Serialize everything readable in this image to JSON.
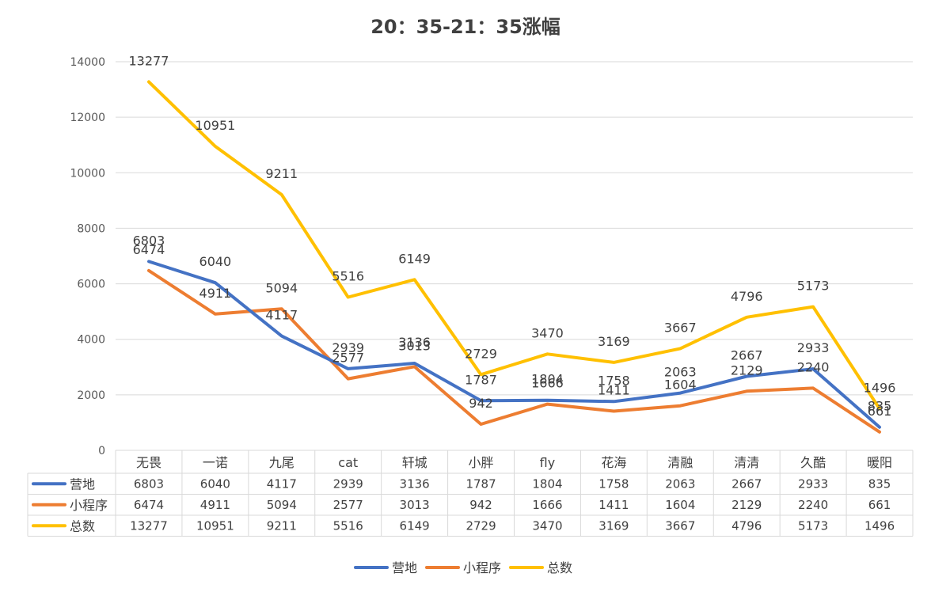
{
  "chart_data": {
    "type": "line",
    "title": "20：35-21：35涨幅",
    "categories": [
      "无畏",
      "一诺",
      "九尾",
      "cat",
      "轩城",
      "小胖",
      "fly",
      "花海",
      "清融",
      "清清",
      "久酷",
      "暖阳"
    ],
    "ylim": [
      0,
      14000
    ],
    "yticks": [
      "0",
      "2000",
      "4000",
      "6000",
      "8000",
      "10000",
      "12000",
      "14000"
    ],
    "grid": true,
    "legend_position": "bottom",
    "data_table": true,
    "series": [
      {
        "name": "营地",
        "color": "#4472c4",
        "values": [
          6803,
          6040,
          4117,
          2939,
          3136,
          1787,
          1804,
          1758,
          2063,
          2667,
          2933,
          835
        ]
      },
      {
        "name": "小程序",
        "color": "#ed7d31",
        "values": [
          6474,
          4911,
          5094,
          2577,
          3013,
          942,
          1666,
          1411,
          1604,
          2129,
          2240,
          661
        ]
      },
      {
        "name": "总数",
        "color": "#ffc000",
        "values": [
          13277,
          10951,
          9211,
          5516,
          6149,
          2729,
          3470,
          3169,
          3667,
          4796,
          5173,
          1496
        ]
      }
    ]
  }
}
